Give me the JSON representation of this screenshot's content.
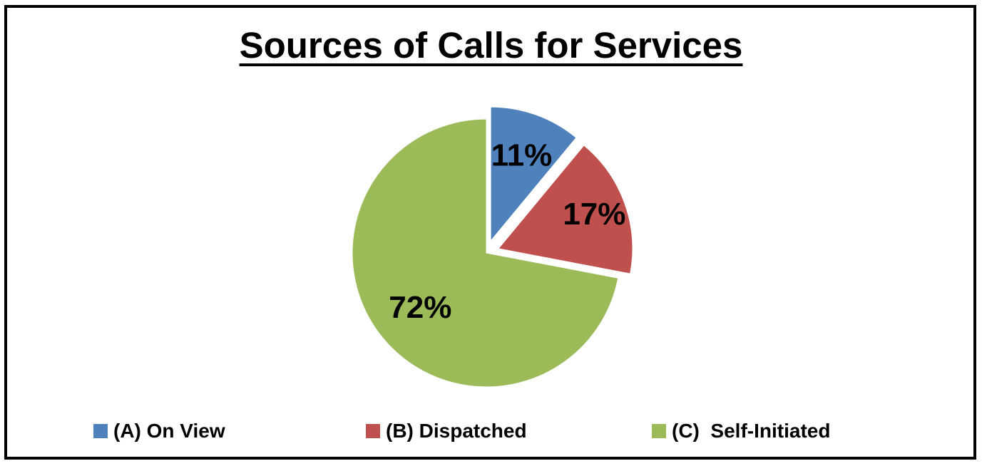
{
  "chart_data": {
    "type": "pie",
    "title": "Sources of Calls for Services",
    "slices": [
      {
        "label": "(A) On View",
        "value": 11,
        "display": "11%",
        "color": "#4F81BD",
        "exploded": true
      },
      {
        "label": "(B) Dispatched",
        "value": 17,
        "display": "17%",
        "color": "#C0504D",
        "exploded": true
      },
      {
        "label": "(C)  Self-Initiated",
        "value": 72,
        "display": "72%",
        "color": "#9BBB59",
        "exploded": false
      }
    ],
    "legend_position": "bottom"
  }
}
